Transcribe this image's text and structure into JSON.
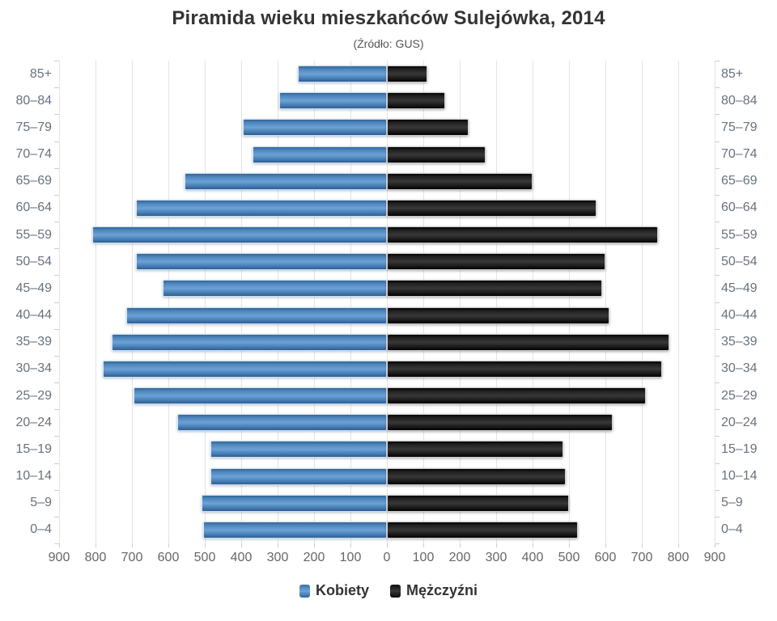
{
  "title": "Piramida wieku mieszkańców Sulejówka, 2014",
  "subtitle": "(Źródło: GUS)",
  "legend": {
    "items": [
      {
        "label": "Kobiety",
        "color": "#4d84ba"
      },
      {
        "label": "Mężczyźni",
        "color": "#111111"
      }
    ]
  },
  "chart_data": {
    "type": "bar",
    "variant": "population-pyramid",
    "title": "Piramida wieku mieszkańców Sulejówka, 2014",
    "subtitle": "(Źródło: GUS)",
    "categories": [
      "85+",
      "80–84",
      "75–79",
      "70–74",
      "65–69",
      "60–64",
      "55–59",
      "50–54",
      "45–49",
      "40–44",
      "35–39",
      "30–34",
      "25–29",
      "20–24",
      "15–19",
      "10–14",
      "5–9",
      "0–4"
    ],
    "series": [
      {
        "name": "Kobiety",
        "side": "left",
        "color": "#4d84ba",
        "values": [
          245,
          295,
          395,
          370,
          555,
          690,
          810,
          690,
          615,
          715,
          755,
          780,
          695,
          575,
          485,
          485,
          510,
          505
        ]
      },
      {
        "name": "Mężczyźni",
        "side": "right",
        "color": "#111111",
        "values": [
          110,
          160,
          225,
          270,
          400,
          575,
          745,
          600,
          590,
          610,
          775,
          755,
          710,
          620,
          485,
          490,
          500,
          525
        ]
      }
    ],
    "x_tick_labels": [
      "900",
      "800",
      "700",
      "600",
      "500",
      "400",
      "300",
      "200",
      "100",
      "0",
      "100",
      "200",
      "300",
      "400",
      "500",
      "600",
      "700",
      "800",
      "900"
    ],
    "xlim": [
      -900,
      900
    ],
    "grid": true,
    "legend_position": "bottom",
    "ylabel_sides": "both"
  }
}
